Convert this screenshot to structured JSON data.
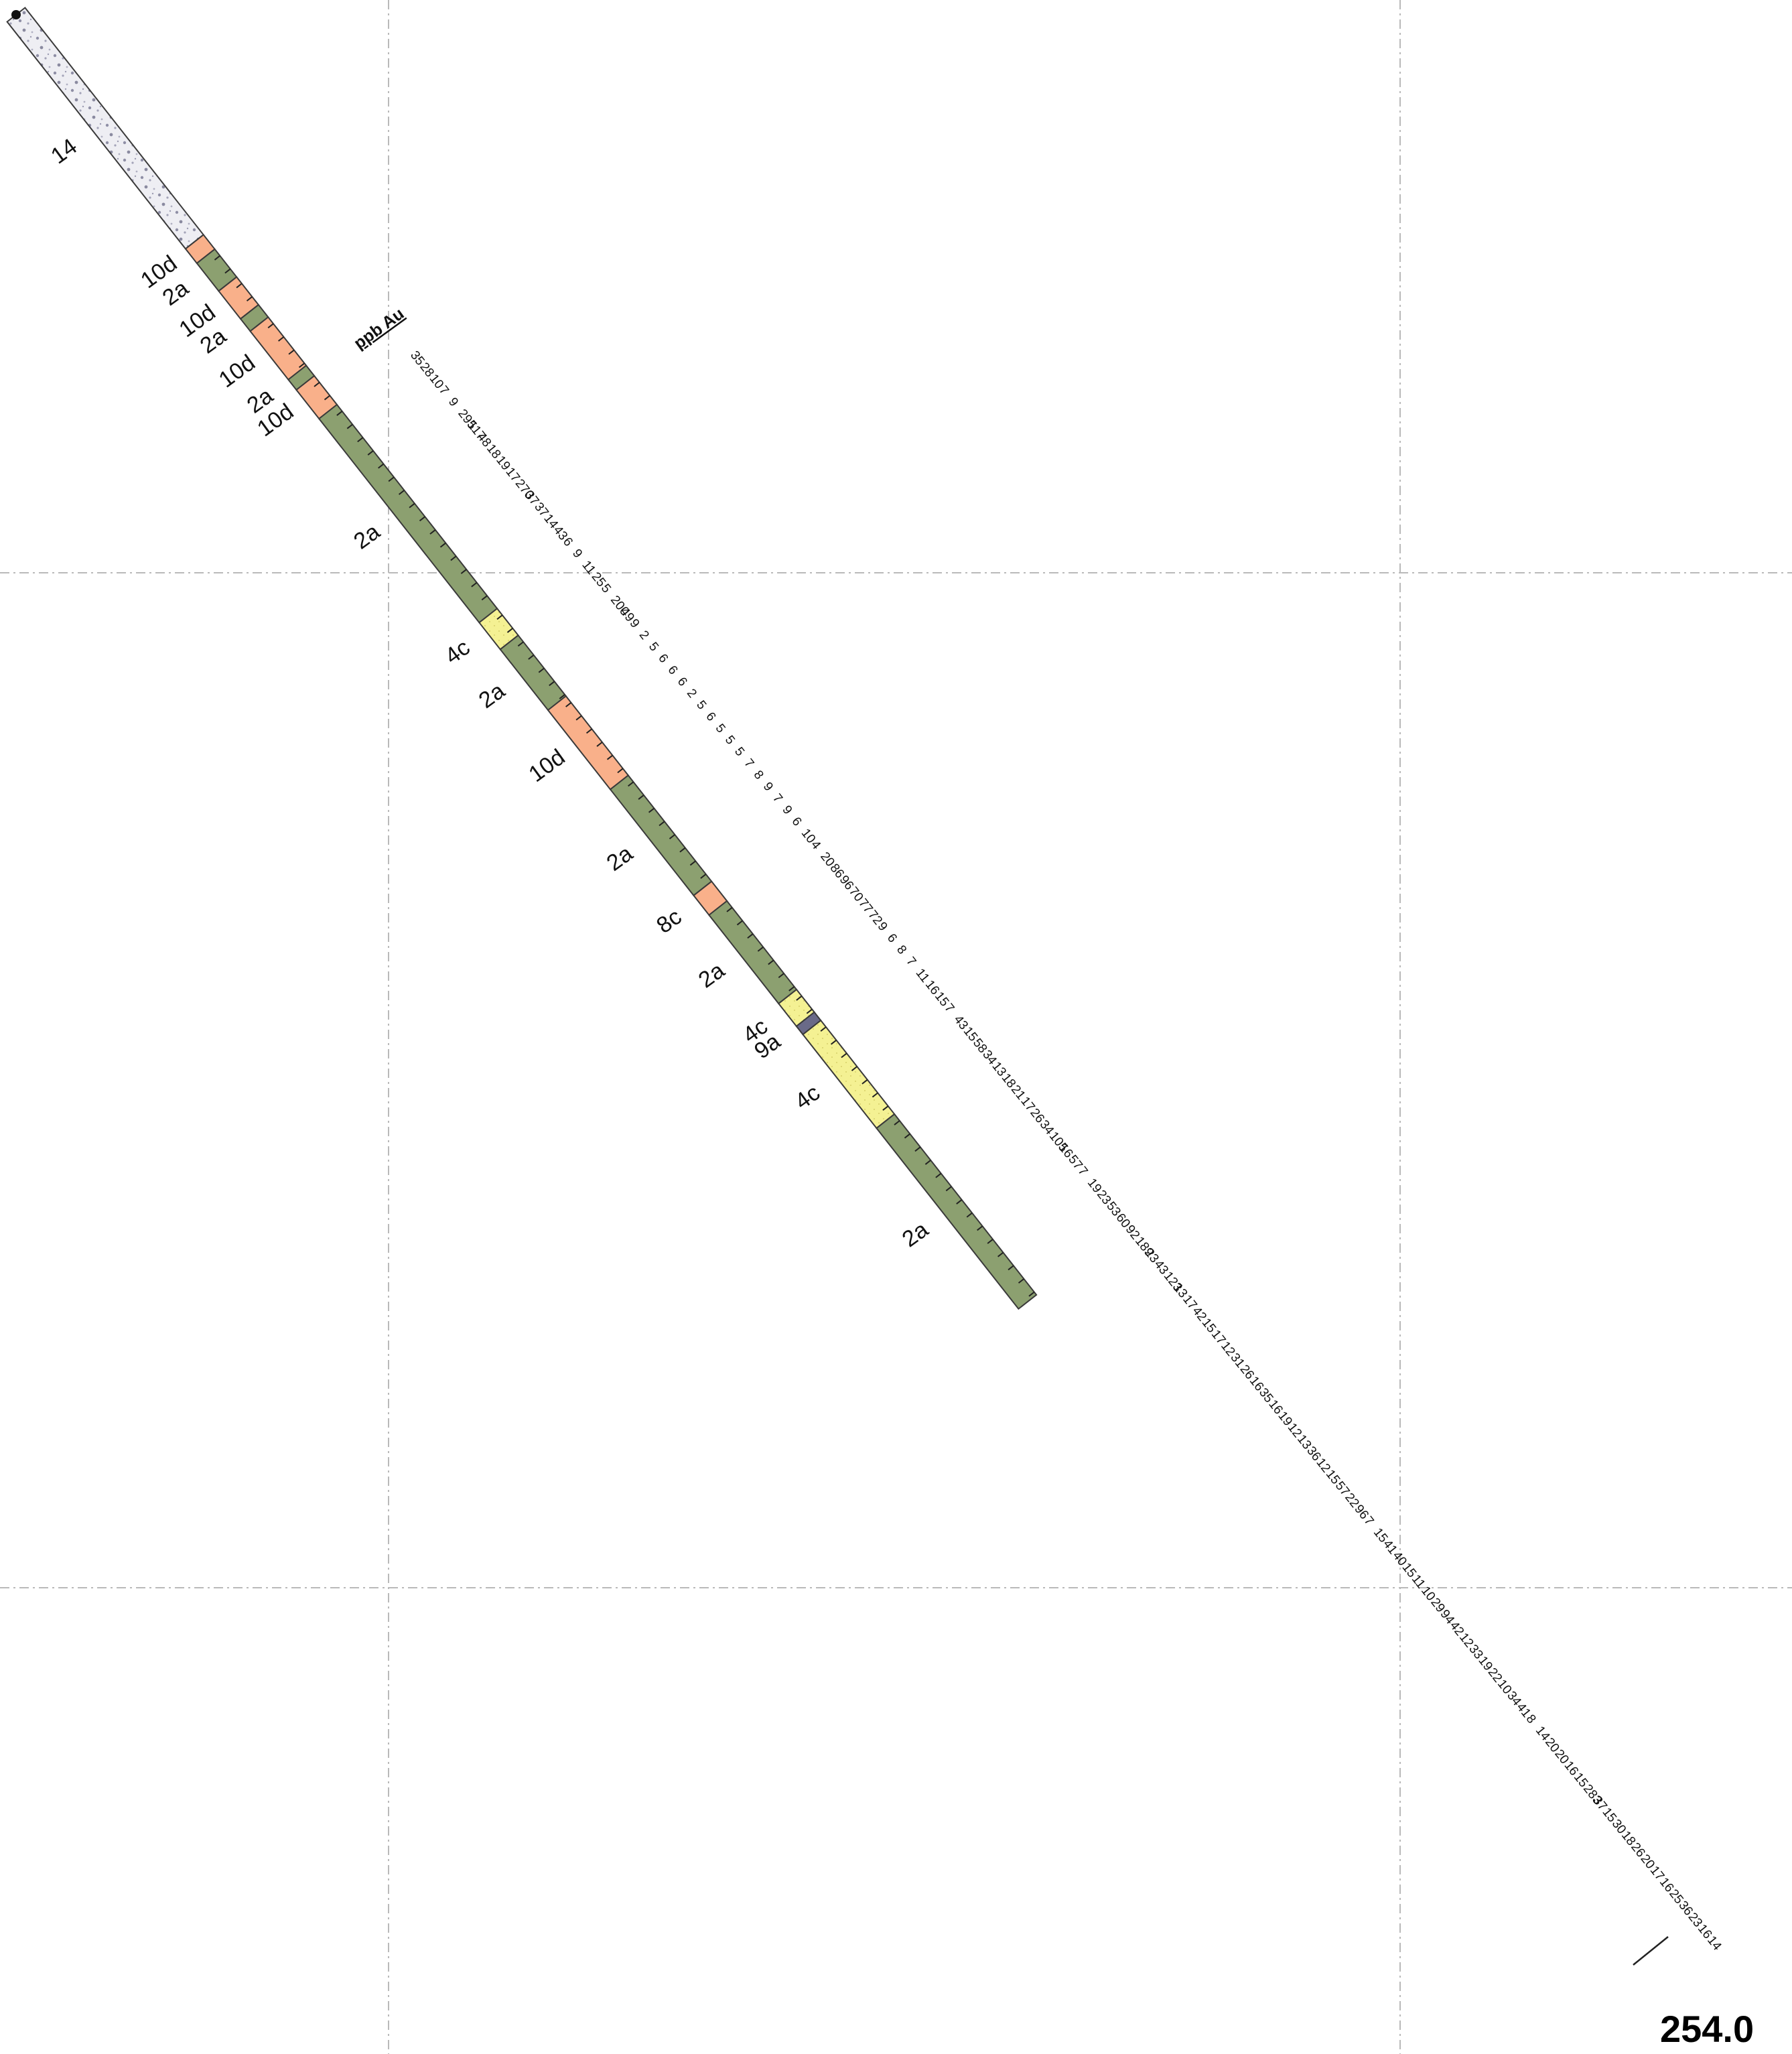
{
  "column_header": "ppb Au",
  "end_depth": "254.0",
  "colors": {
    "14": "#eeeef3",
    "10d": "#f9b08a",
    "2a": "#8ca070",
    "4c": "#f4f193",
    "8c": "#f9b08a",
    "9a": "#6a6a88"
  },
  "intervals": [
    {
      "code": "14",
      "label": "14",
      "from": 0.0,
      "to": 0.2205,
      "pattern": "dots"
    },
    {
      "code": "10d",
      "label": "10d",
      "from": 0.2205,
      "to": 0.2345
    },
    {
      "code": "2a",
      "label": "2a",
      "from": 0.2345,
      "to": 0.2615
    },
    {
      "code": "10d",
      "label": "10d",
      "from": 0.2615,
      "to": 0.2885
    },
    {
      "code": "2a",
      "label": "2a",
      "from": 0.2885,
      "to": 0.3005
    },
    {
      "code": "10d",
      "label": "10d",
      "from": 0.3005,
      "to": 0.3475
    },
    {
      "code": "2a",
      "label": "2a",
      "from": 0.3475,
      "to": 0.3575
    },
    {
      "code": "10d",
      "label": "10d",
      "from": 0.3575,
      "to": 0.3855
    },
    {
      "code": "2a",
      "label": "2a",
      "from": 0.3855,
      "to": 0.5835
    },
    {
      "code": "4c",
      "label": "4c",
      "from": 0.5835,
      "to": 0.6095
    },
    {
      "code": "2a",
      "label": "2a",
      "from": 0.6095,
      "to": 0.6685
    },
    {
      "code": "10d",
      "label": "10d",
      "from": 0.6685,
      "to": 0.7455
    },
    {
      "code": "2a",
      "label": "2a",
      "from": 0.7455,
      "to": 0.8485
    },
    {
      "code": "8c",
      "label": "8c",
      "from": 0.8485,
      "to": 0.8675
    },
    {
      "code": "2a",
      "label": "2a",
      "from": 0.8675,
      "to": 0.9535
    },
    {
      "code": "4c",
      "label": "4c",
      "from": 0.9535,
      "to": 0.9755
    },
    {
      "code": "9a",
      "label": "9a",
      "from": 0.9755,
      "to": 0.9835
    },
    {
      "code": "4c",
      "label": "4c",
      "from": 0.9835,
      "to": 1.0745
    },
    {
      "code": "2a",
      "label": "2a",
      "from": 1.0745,
      "to": 1.25
    }
  ],
  "assays": [
    "35",
    "28",
    "10",
    "7",
    "9",
    "295",
    "117",
    "48",
    "18",
    "19",
    "17",
    "270",
    "37",
    "37",
    "14",
    "43",
    "6",
    "9",
    "11",
    "25",
    "5",
    "200",
    "49",
    "9",
    "2",
    "5",
    "6",
    "6",
    "6",
    "2",
    "5",
    "6",
    "5",
    "5",
    "5",
    "7",
    "8",
    "9",
    "7",
    "9",
    "6",
    "10",
    "4",
    "20",
    "86",
    "96",
    "70",
    "77",
    "72",
    "9",
    "6",
    "8",
    "7",
    "11",
    "16",
    "15",
    "7",
    "43",
    "15",
    "58",
    "34",
    "13",
    "18",
    "21",
    "17",
    "26",
    "34",
    "105",
    "16",
    "57",
    "7",
    "19",
    "23",
    "53",
    "60",
    "92",
    "189",
    "23",
    "43",
    "123",
    "13",
    "17",
    "42",
    "15",
    "17",
    "12",
    "31",
    "26",
    "16",
    "35",
    "16",
    "19",
    "12",
    "13",
    "36",
    "12",
    "15",
    "57",
    "22",
    "96",
    "7",
    "15",
    "41",
    "40",
    "15",
    "11",
    "10",
    "29",
    "94",
    "42",
    "12",
    "33",
    "19",
    "22",
    "10",
    "34",
    "41",
    "8",
    "14",
    "20",
    "20",
    "16",
    "15",
    "283",
    "37",
    "15",
    "30",
    "18",
    "26",
    "20",
    "17",
    "16",
    "25",
    "36",
    "23",
    "16",
    "14"
  ]
}
